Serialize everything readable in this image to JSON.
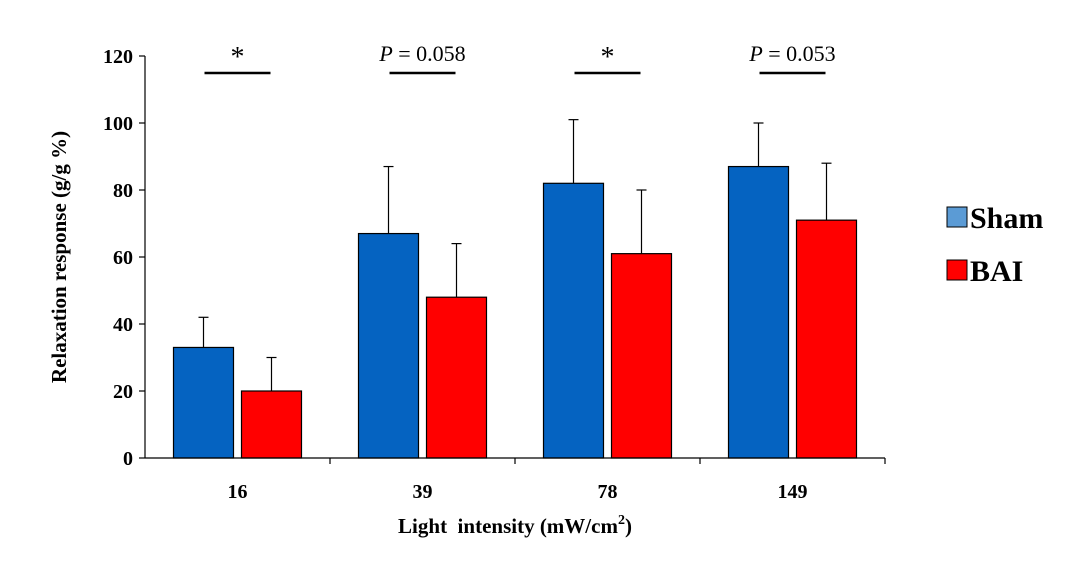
{
  "chart_data": {
    "type": "bar",
    "categories": [
      "16",
      "39",
      "78",
      "149"
    ],
    "series": [
      {
        "name": "Sham",
        "values": [
          33,
          67,
          82,
          87
        ],
        "errors": [
          9,
          20,
          19,
          13
        ],
        "color": "#0563C1"
      },
      {
        "name": "BAI",
        "values": [
          20,
          48,
          61,
          71
        ],
        "errors": [
          10,
          16,
          19,
          17
        ],
        "color": "#FF0000"
      }
    ],
    "ylabel": "Relaxation response (g/g %)",
    "xlabel": "Light  intensity (mW/cm",
    "xlabel_superscript": "2",
    "xlabel_suffix": ")",
    "ylim": [
      0,
      120
    ],
    "yticks": [
      "0",
      "20",
      "40",
      "60",
      "80",
      "100",
      "120"
    ],
    "grid": false,
    "legend_position": "right",
    "annotations": [
      {
        "category": "16",
        "text": "*",
        "italic_prefix": ""
      },
      {
        "category": "39",
        "text": " = 0.058",
        "italic_prefix": "P"
      },
      {
        "category": "78",
        "text": "*",
        "italic_prefix": ""
      },
      {
        "category": "149",
        "text": " = 0.053",
        "italic_prefix": "P"
      }
    ]
  }
}
